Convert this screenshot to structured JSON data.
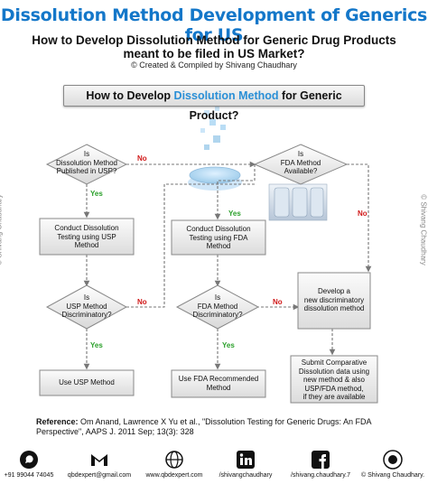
{
  "header": {
    "title": "Dissolution Method Development of Generics for US",
    "subtitle_line1": "How to Develop Dissolution Method for Generic Drug Products",
    "subtitle_line2": "meant to be filed in US Market?",
    "credit": "© Created & Compiled by Shivang Chaudhary"
  },
  "banner": {
    "text_before": "How to Develop ",
    "highlight": "Dissolution Method",
    "text_after": " for Generic Product?"
  },
  "flow": {
    "d1": [
      "Is",
      "Dissolution Method",
      "Published in USP?"
    ],
    "d2": [
      "Is",
      "FDA Method",
      "Available?"
    ],
    "d3": [
      "Is",
      "USP Method",
      "Discriminatory?"
    ],
    "d4": [
      "Is",
      "FDA Method",
      "Discriminatory?"
    ],
    "b1": [
      "Conduct Dissolution",
      "Testing using USP",
      "Method"
    ],
    "b2": [
      "Conduct Dissolution",
      "Testing using FDA",
      "Method"
    ],
    "b3": [
      "Use USP Method"
    ],
    "b4": [
      "Use FDA Recommended",
      "Method"
    ],
    "b5": [
      "Develop a",
      "new discriminatory",
      "dissolution method"
    ],
    "b6": [
      "Submit Comparative",
      "Dissolution data using",
      "new method & also",
      "USP/FDA method,",
      "if they are available"
    ],
    "yes": "Yes",
    "no": "No"
  },
  "watermark": "© Shivang Chaudhary",
  "reference": {
    "label": "Reference:",
    "text": " Om Anand, Lawrence X Yu et al., \"Dissolution Testing for Generic Drugs: An FDA Perspective\", AAPS J. 2011 Sep; 13(3): 328"
  },
  "footer": {
    "phone": "+91 99044 74045",
    "email": "qbdexpert@gmail.com",
    "web": "www.qbdexpert.com",
    "linkedin": "/shivangchaudhary",
    "facebook": "/shivang.chaudhary.7",
    "copyright": "© Shivang Chaudhary.",
    "logo": "QbD Expert"
  },
  "colors": {
    "title": "#1477c9",
    "yes": "#2aa02a",
    "no": "#d01818",
    "whatsapp": "#25d366",
    "gmail": "#d93025",
    "linkedin": "#0a66c2",
    "facebook": "#1877f2"
  }
}
